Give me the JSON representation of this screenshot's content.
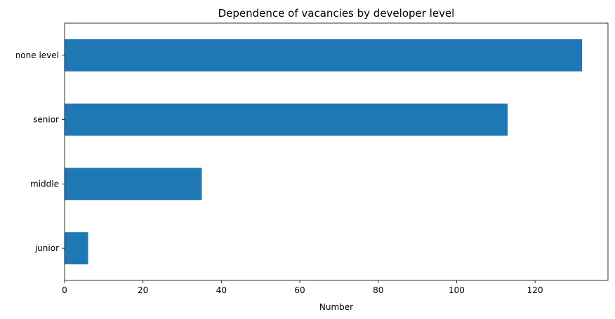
{
  "chart_data": {
    "type": "bar",
    "orientation": "horizontal",
    "title": "Dependence of vacancies by developer level",
    "xlabel": "Number",
    "ylabel": "",
    "categories": [
      "junior",
      "middle",
      "senior",
      "none level"
    ],
    "values": [
      6,
      35,
      113,
      132
    ],
    "xlim": [
      0,
      138.6
    ],
    "xticks": [
      0,
      20,
      40,
      60,
      80,
      100,
      120
    ],
    "grid": false,
    "legend": "none",
    "bar_color": "#1f77b4"
  }
}
